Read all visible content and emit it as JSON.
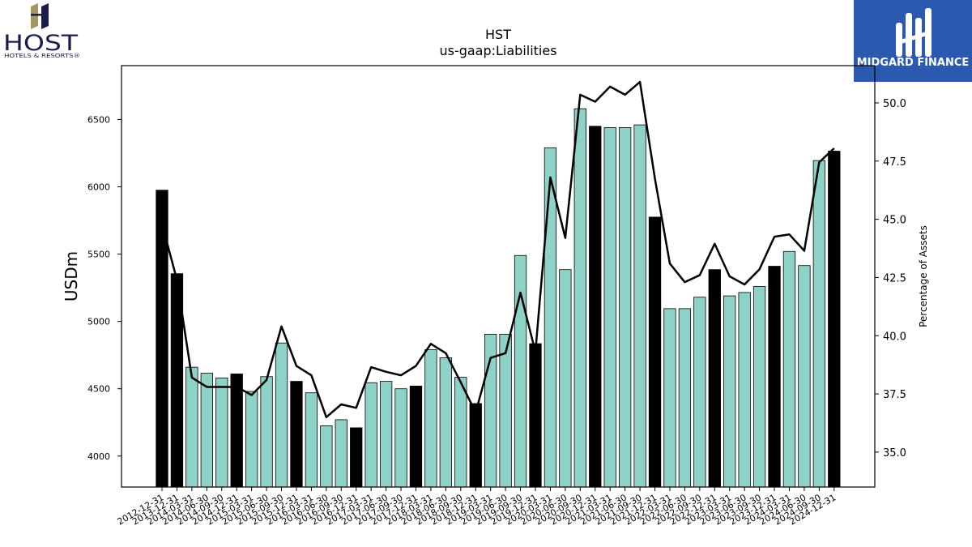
{
  "logos": {
    "host_name": "HOST",
    "host_tagline": "HOTELS & RESORTS®",
    "midgard_name": "MIDGARD FINANCE"
  },
  "colors": {
    "bar_default": "#8ed1c6",
    "bar_highlight": "#000000",
    "line": "#000000",
    "midgard_bg": "#2b59b0",
    "host_navy": "#1c1c4e",
    "host_gold": "#a59563"
  },
  "chart_data": {
    "type": "bar",
    "title": "HST",
    "subtitle": "us-gaap:Liabilities",
    "ylabel": "USDm",
    "y2label": "Percentage of Assets",
    "ylim": [
      3770,
      6900
    ],
    "y2lim": [
      33.5,
      51.6
    ],
    "yticks": [
      4000,
      4500,
      5000,
      5500,
      6000,
      6500
    ],
    "y2ticks": [
      35.0,
      37.5,
      40.0,
      42.5,
      45.0,
      47.5,
      50.0
    ],
    "grid": false,
    "categories": [
      "2012-12-31",
      "2013-12-31",
      "2014-03-31",
      "2014-06-30",
      "2014-09-30",
      "2014-12-31",
      "2015-03-31",
      "2015-06-30",
      "2015-09-30",
      "2015-12-31",
      "2016-03-31",
      "2016-06-30",
      "2016-09-30",
      "2016-12-31",
      "2017-03-31",
      "2017-06-30",
      "2017-09-30",
      "2017-12-31",
      "2018-03-31",
      "2018-06-30",
      "2018-09-30",
      "2018-12-31",
      "2019-03-31",
      "2019-06-30",
      "2019-09-30",
      "2019-12-31",
      "2020-03-31",
      "2020-06-30",
      "2020-09-30",
      "2020-12-31",
      "2021-03-31",
      "2021-06-30",
      "2021-09-30",
      "2021-12-31",
      "2022-03-31",
      "2022-06-30",
      "2022-09-30",
      "2022-12-31",
      "2023-03-31",
      "2023-06-30",
      "2023-09-30",
      "2023-12-31",
      "2024-03-31",
      "2024-06-30",
      "2024-09-30",
      "2024-12-31"
    ],
    "series": [
      {
        "kind": "bar",
        "values": [
          5975,
          5355,
          4660,
          4615,
          4580,
          4610,
          4480,
          4590,
          4840,
          4555,
          4470,
          4225,
          4270,
          4210,
          4545,
          4555,
          4500,
          4520,
          4790,
          4730,
          4585,
          4390,
          4905,
          4905,
          5490,
          4835,
          6290,
          5385,
          6580,
          6450,
          6440,
          6440,
          6460,
          5775,
          5095,
          5095,
          5180,
          5385,
          5190,
          5215,
          5260,
          5410,
          5520,
          5415,
          6195,
          6265
        ],
        "highlight": [
          true,
          true,
          false,
          false,
          false,
          true,
          false,
          false,
          false,
          true,
          false,
          false,
          false,
          true,
          false,
          false,
          false,
          true,
          false,
          false,
          false,
          true,
          false,
          false,
          false,
          true,
          false,
          false,
          false,
          true,
          false,
          false,
          false,
          true,
          false,
          false,
          false,
          true,
          false,
          false,
          false,
          true,
          false,
          false,
          false,
          true
        ]
      },
      {
        "kind": "line",
        "axis": "right",
        "values": [
          44.8,
          42.4,
          38.2,
          37.8,
          37.8,
          37.8,
          37.45,
          38.1,
          40.4,
          38.7,
          38.3,
          36.5,
          37.05,
          36.9,
          38.65,
          38.45,
          38.3,
          38.7,
          39.65,
          39.25,
          38.0,
          36.7,
          39.05,
          39.25,
          41.85,
          39.3,
          46.8,
          44.2,
          50.35,
          50.05,
          50.7,
          50.35,
          50.9,
          46.75,
          43.1,
          42.3,
          42.6,
          43.95,
          42.55,
          42.2,
          42.85,
          44.25,
          44.35,
          43.65,
          47.45,
          48.05
        ]
      }
    ]
  }
}
